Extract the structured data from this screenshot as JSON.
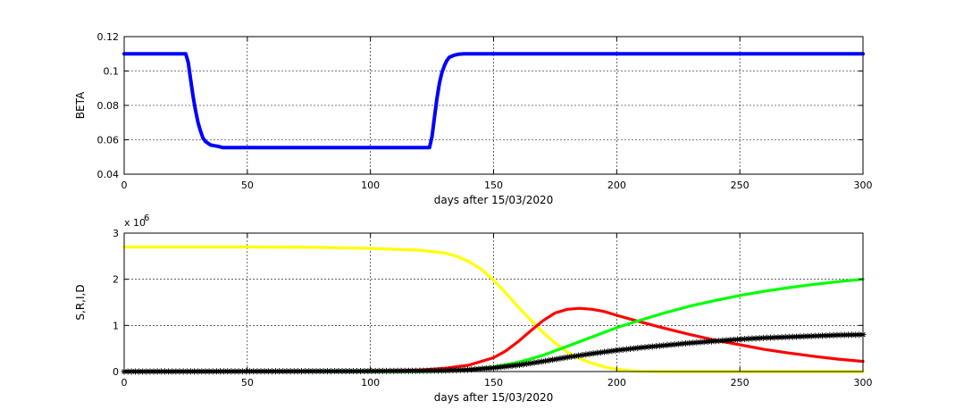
{
  "chart_data": [
    {
      "type": "line",
      "xlabel": "days after 15/03/2020",
      "ylabel": "BETA",
      "xlim": [
        0,
        300
      ],
      "ylim": [
        0.04,
        0.12
      ],
      "xticks": [
        0,
        50,
        100,
        150,
        200,
        250,
        300
      ],
      "yticks": [
        0.04,
        0.06,
        0.08,
        0.1,
        0.12
      ],
      "ytick_labels": [
        "0.04",
        "0.06",
        "0.08",
        "0.1",
        "0.12"
      ],
      "grid": true,
      "series": [
        {
          "color": "#0000ff",
          "x": [
            0,
            25,
            26,
            27,
            28,
            29,
            30,
            31,
            32,
            33,
            35,
            38,
            40,
            60,
            100,
            124,
            125,
            126,
            127,
            128,
            129,
            130,
            131,
            132,
            134,
            136,
            138,
            140,
            200,
            300
          ],
          "y": [
            0.11,
            0.11,
            0.105,
            0.095,
            0.085,
            0.077,
            0.07,
            0.065,
            0.061,
            0.059,
            0.057,
            0.0562,
            0.0555,
            0.0555,
            0.0555,
            0.0555,
            0.062,
            0.073,
            0.084,
            0.093,
            0.099,
            0.103,
            0.106,
            0.108,
            0.1092,
            0.1098,
            0.11,
            0.11,
            0.11,
            0.11
          ]
        }
      ]
    },
    {
      "type": "line",
      "xlabel": "days after 15/03/2020",
      "ylabel": "S,R,I,D",
      "y_multiplier": "x 10",
      "y_multiplier_exp": "6",
      "xlim": [
        0,
        300
      ],
      "ylim": [
        0,
        3
      ],
      "xticks": [
        0,
        50,
        100,
        150,
        200,
        250,
        300
      ],
      "yticks": [
        0,
        1,
        2,
        3
      ],
      "ytick_labels": [
        "0",
        "1",
        "2",
        "3"
      ],
      "grid": true,
      "series": [
        {
          "color": "#ffff00",
          "x": [
            0,
            50,
            80,
            100,
            120,
            130,
            135,
            140,
            145,
            150,
            155,
            160,
            165,
            170,
            175,
            180,
            185,
            190,
            195,
            200,
            205,
            210,
            220,
            250,
            300
          ],
          "y": [
            2.7,
            2.7,
            2.69,
            2.67,
            2.63,
            2.57,
            2.5,
            2.38,
            2.22,
            1.98,
            1.7,
            1.4,
            1.12,
            0.85,
            0.62,
            0.42,
            0.28,
            0.18,
            0.1,
            0.05,
            0.02,
            0.005,
            0,
            0,
            0
          ]
        },
        {
          "color": "#ff0000",
          "x": [
            0,
            100,
            120,
            130,
            140,
            150,
            155,
            160,
            165,
            170,
            175,
            180,
            185,
            190,
            195,
            200,
            210,
            220,
            230,
            240,
            250,
            260,
            270,
            280,
            290,
            300
          ],
          "y": [
            0,
            0.002,
            0.03,
            0.07,
            0.14,
            0.3,
            0.45,
            0.65,
            0.88,
            1.1,
            1.27,
            1.35,
            1.37,
            1.35,
            1.3,
            1.22,
            1.07,
            0.93,
            0.8,
            0.68,
            0.58,
            0.48,
            0.4,
            0.33,
            0.27,
            0.22
          ]
        },
        {
          "color": "#00ff00",
          "x": [
            0,
            120,
            140,
            150,
            160,
            170,
            180,
            190,
            200,
            210,
            220,
            230,
            240,
            250,
            260,
            270,
            280,
            290,
            300
          ],
          "y": [
            0,
            0,
            0.04,
            0.1,
            0.2,
            0.35,
            0.55,
            0.75,
            0.95,
            1.12,
            1.28,
            1.42,
            1.54,
            1.65,
            1.74,
            1.82,
            1.89,
            1.95,
            2.0
          ]
        },
        {
          "color": "#000000",
          "marker": "*",
          "x": [
            0,
            100,
            130,
            140,
            150,
            160,
            170,
            180,
            190,
            200,
            210,
            220,
            230,
            240,
            250,
            260,
            270,
            280,
            290,
            300
          ],
          "y": [
            0,
            0.01,
            0.02,
            0.04,
            0.08,
            0.14,
            0.22,
            0.31,
            0.39,
            0.46,
            0.52,
            0.57,
            0.62,
            0.66,
            0.7,
            0.73,
            0.75,
            0.77,
            0.79,
            0.8
          ]
        }
      ]
    }
  ]
}
